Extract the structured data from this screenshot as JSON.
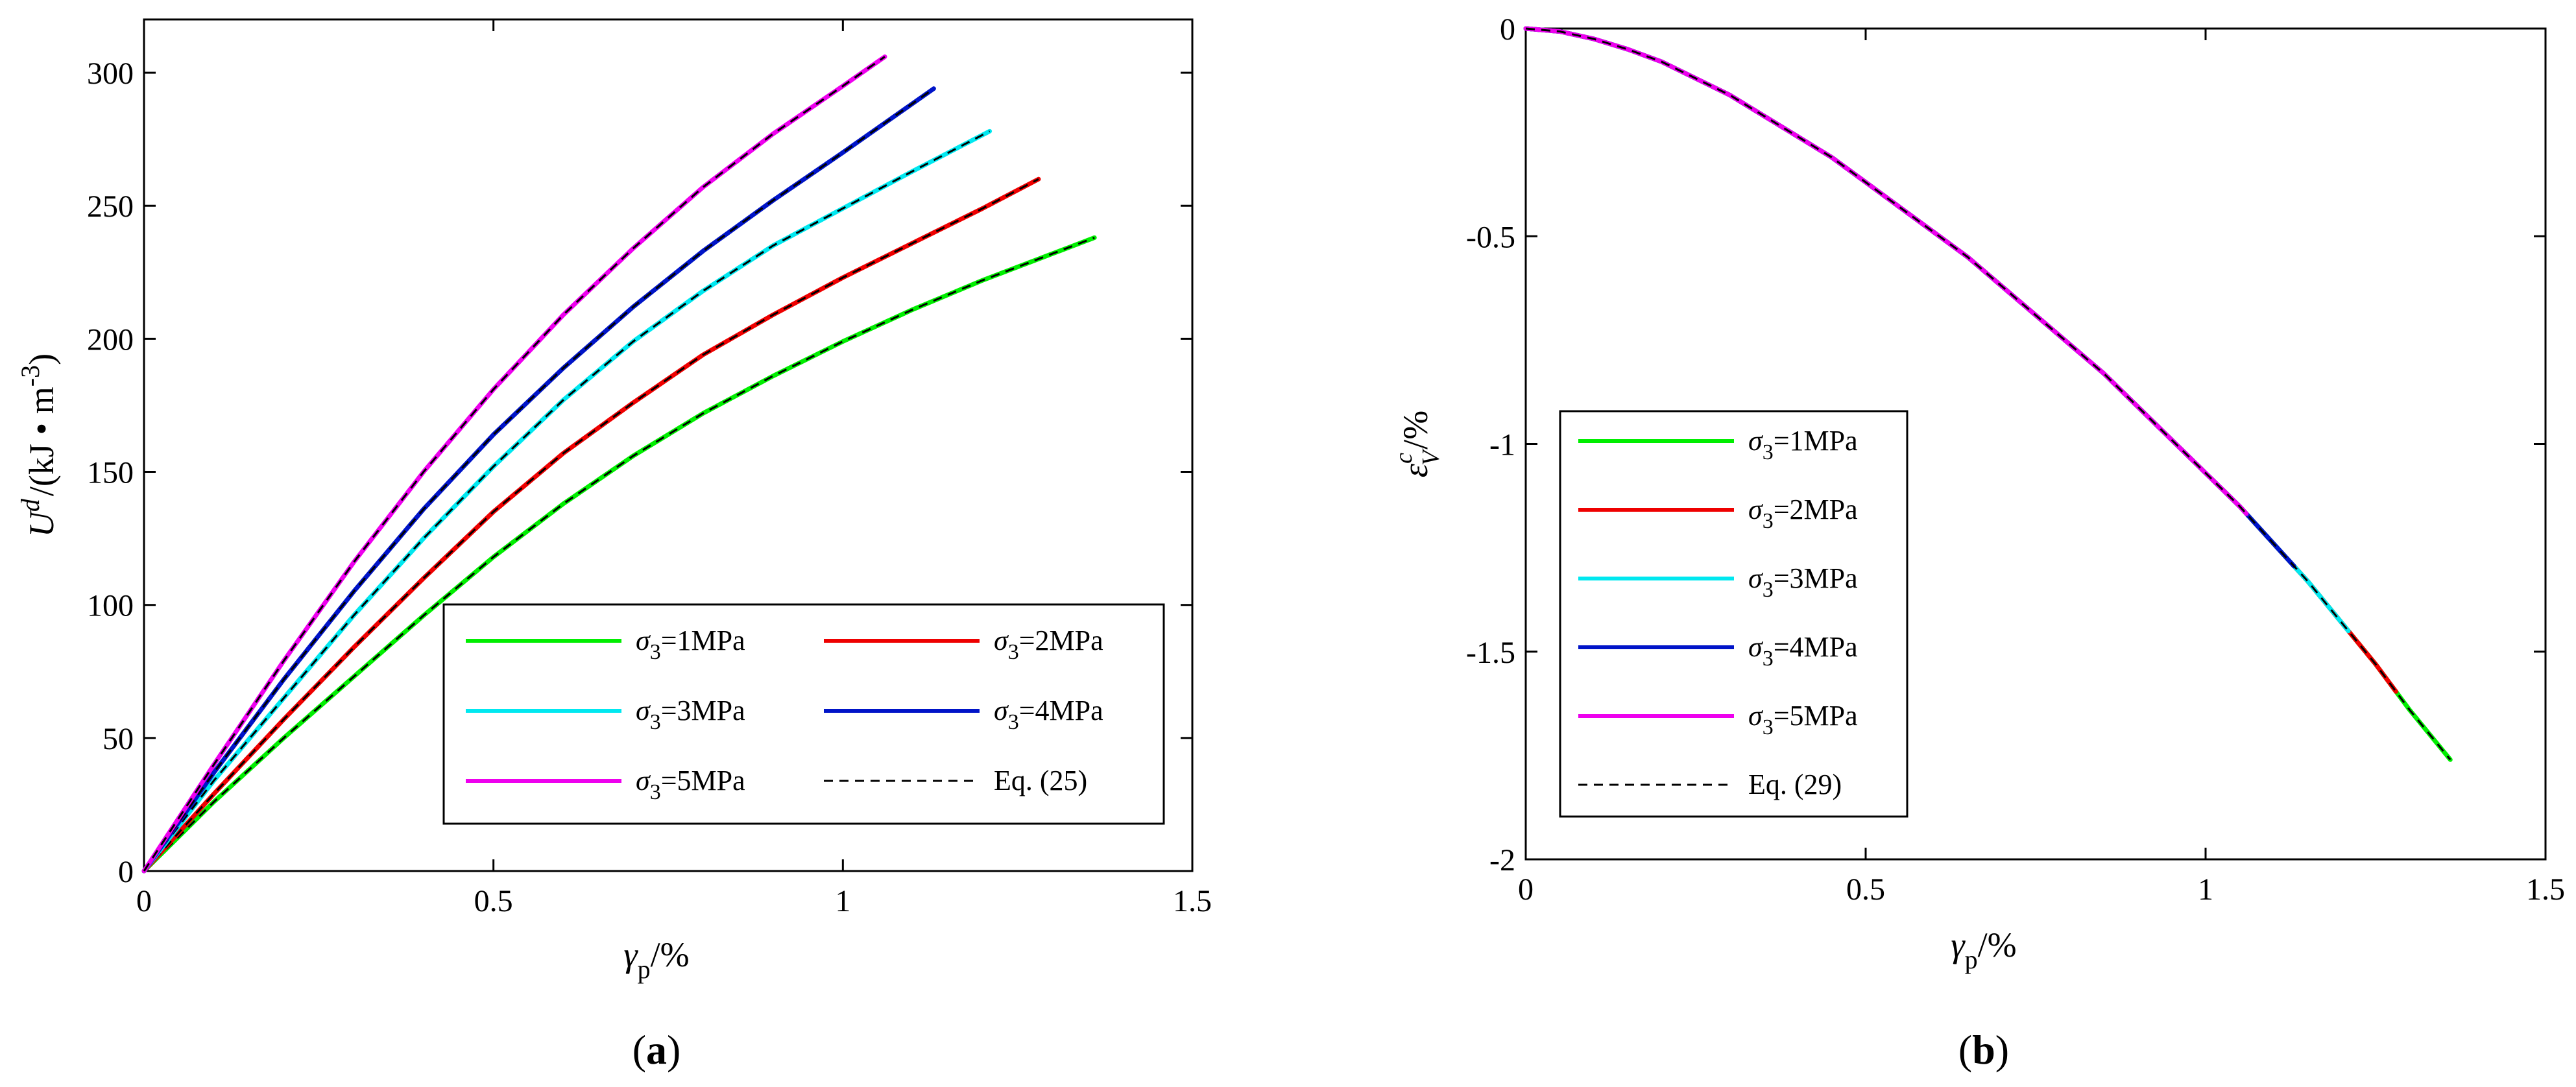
{
  "colors": {
    "s1": "#00ee00",
    "s2": "#ee0000",
    "s3": "#00e8f0",
    "s4": "#0014c8",
    "s5": "#ee00ee",
    "eq": "#000000"
  },
  "chart_data": [
    {
      "id": "a",
      "type": "line",
      "panel_label": "(a)",
      "panel_label_open": "(",
      "panel_label_letter": "a",
      "panel_label_close": ")",
      "xlabel": "γp/%",
      "xlabel_main": "γ",
      "xlabel_sub": "p",
      "xlabel_unit": "/%",
      "ylabel": "U^d /(kJ • m^-3)",
      "ylabel_main": "U",
      "ylabel_sup": "d",
      "ylabel_unit": "/(kJ • m",
      "ylabel_unit_sup": "-3",
      "ylabel_close": ")",
      "xlim": [
        0,
        1.5
      ],
      "ylim": [
        0,
        320
      ],
      "xticks": [
        0,
        0.5,
        1,
        1.5
      ],
      "xtick_labels": [
        "0",
        "0.5",
        "1",
        "1.5"
      ],
      "yticks": [
        0,
        50,
        100,
        150,
        200,
        250,
        300
      ],
      "ytick_labels": [
        "0",
        "50",
        "100",
        "150",
        "200",
        "250",
        "300"
      ],
      "legend": {
        "placement": "bottom-right",
        "columns": 2,
        "entries": [
          {
            "series": "s1",
            "sigma": "σ",
            "sub": "3",
            "rest": "=1MPa"
          },
          {
            "series": "s2",
            "sigma": "σ",
            "sub": "3",
            "rest": "=2MPa"
          },
          {
            "series": "s3",
            "sigma": "σ",
            "sub": "3",
            "rest": "=3MPa"
          },
          {
            "series": "s4",
            "sigma": "σ",
            "sub": "3",
            "rest": "=4MPa"
          },
          {
            "series": "s5",
            "sigma": "σ",
            "sub": "3",
            "rest": "=5MPa"
          },
          {
            "series": "eq",
            "text": "Eq. (25)"
          }
        ]
      },
      "series": [
        {
          "key": "s1",
          "name": "σ3=1MPa",
          "color": "#00ee00",
          "dashed_overlay": true,
          "x": [
            0,
            0.1,
            0.2,
            0.3,
            0.4,
            0.5,
            0.6,
            0.7,
            0.8,
            0.9,
            1.0,
            1.1,
            1.2,
            1.3,
            1.36
          ],
          "y": [
            0,
            26,
            50,
            73,
            96,
            118,
            138,
            156,
            172,
            186,
            199,
            211,
            222,
            232,
            238
          ]
        },
        {
          "key": "s2",
          "name": "σ3=2MPa",
          "color": "#ee0000",
          "dashed_overlay": true,
          "x": [
            0,
            0.1,
            0.2,
            0.3,
            0.4,
            0.5,
            0.6,
            0.7,
            0.8,
            0.9,
            1.0,
            1.1,
            1.2,
            1.28
          ],
          "y": [
            0,
            29,
            57,
            84,
            110,
            135,
            157,
            176,
            194,
            209,
            223,
            236,
            249,
            260
          ]
        },
        {
          "key": "s3",
          "name": "σ3=3MPa",
          "color": "#00e8f0",
          "dashed_overlay": true,
          "x": [
            0,
            0.1,
            0.2,
            0.3,
            0.4,
            0.5,
            0.6,
            0.7,
            0.8,
            0.9,
            1.0,
            1.1,
            1.21
          ],
          "y": [
            0,
            34,
            65,
            96,
            125,
            152,
            177,
            199,
            218,
            235,
            249,
            263,
            278
          ]
        },
        {
          "key": "s4",
          "name": "σ3=4MPa",
          "color": "#0014c8",
          "dashed_overlay": false,
          "x": [
            0,
            0.1,
            0.2,
            0.3,
            0.4,
            0.5,
            0.6,
            0.7,
            0.8,
            0.9,
            1.0,
            1.13
          ],
          "y": [
            0,
            37,
            72,
            105,
            136,
            164,
            189,
            212,
            233,
            252,
            270,
            294
          ]
        },
        {
          "key": "s5",
          "name": "σ3=5MPa",
          "color": "#ee00ee",
          "dashed_overlay": true,
          "x": [
            0,
            0.1,
            0.2,
            0.3,
            0.4,
            0.5,
            0.6,
            0.7,
            0.8,
            0.9,
            1.0,
            1.06
          ],
          "y": [
            0,
            40,
            79,
            116,
            150,
            181,
            209,
            234,
            257,
            277,
            295,
            306
          ]
        }
      ]
    },
    {
      "id": "b",
      "type": "line",
      "panel_label": "(b)",
      "panel_label_open": "(",
      "panel_label_letter": "b",
      "panel_label_close": ")",
      "xlabel": "γp/%",
      "xlabel_main": "γ",
      "xlabel_sub": "p",
      "xlabel_unit": "/%",
      "ylabel": "ε_V^c /%",
      "ylabel_main": "ε",
      "ylabel_sup": "c",
      "ylabel_sub": "V",
      "ylabel_unit": "/%",
      "xlim": [
        0,
        1.5
      ],
      "ylim": [
        -2,
        0
      ],
      "xticks": [
        0,
        0.5,
        1,
        1.5
      ],
      "xtick_labels": [
        "0",
        "0.5",
        "1",
        "1.5"
      ],
      "yticks": [
        0,
        -0.5,
        -1,
        -1.5,
        -2
      ],
      "ytick_labels": [
        "0",
        "-0.5",
        "-1",
        "-1.5",
        "-2"
      ],
      "legend": {
        "placement": "left",
        "columns": 1,
        "entries": [
          {
            "series": "s1",
            "sigma": "σ",
            "sub": "3",
            "rest": "=1MPa"
          },
          {
            "series": "s2",
            "sigma": "σ",
            "sub": "3",
            "rest": "=2MPa"
          },
          {
            "series": "s3",
            "sigma": "σ",
            "sub": "3",
            "rest": "=3MPa"
          },
          {
            "series": "s4",
            "sigma": "σ",
            "sub": "3",
            "rest": "=4MPa"
          },
          {
            "series": "s5",
            "sigma": "σ",
            "sub": "3",
            "rest": "=5MPa"
          },
          {
            "series": "eq",
            "text": "Eq. (29)"
          }
        ]
      },
      "series": [
        {
          "key": "s1",
          "name": "σ3=1MPa",
          "color": "#00ee00",
          "x": [
            0,
            1.36
          ]
        },
        {
          "key": "s2",
          "name": "σ3=2MPa",
          "color": "#ee0000",
          "x": [
            0,
            1.28
          ]
        },
        {
          "key": "s3",
          "name": "σ3=3MPa",
          "color": "#00e8f0",
          "x": [
            0,
            1.21
          ]
        },
        {
          "key": "s4",
          "name": "σ3=4MPa",
          "color": "#0014c8",
          "x": [
            0,
            1.13
          ]
        },
        {
          "key": "s5",
          "name": "σ3=5MPa",
          "color": "#ee00ee",
          "x": [
            0,
            1.06
          ]
        }
      ],
      "common_curve": {
        "x": [
          0,
          0.05,
          0.1,
          0.15,
          0.2,
          0.25,
          0.3,
          0.35,
          0.4,
          0.45,
          0.5,
          0.55,
          0.6,
          0.65,
          0.7,
          0.75,
          0.8,
          0.85,
          0.9,
          0.95,
          1.0,
          1.05,
          1.1,
          1.15,
          1.2,
          1.25,
          1.3,
          1.36
        ],
        "y": [
          0,
          -0.007,
          -0.025,
          -0.05,
          -0.08,
          -0.12,
          -0.16,
          -0.21,
          -0.26,
          -0.31,
          -0.37,
          -0.43,
          -0.49,
          -0.55,
          -0.62,
          -0.69,
          -0.76,
          -0.83,
          -0.91,
          -0.99,
          -1.07,
          -1.15,
          -1.24,
          -1.33,
          -1.43,
          -1.53,
          -1.64,
          -1.76
        ]
      }
    }
  ]
}
